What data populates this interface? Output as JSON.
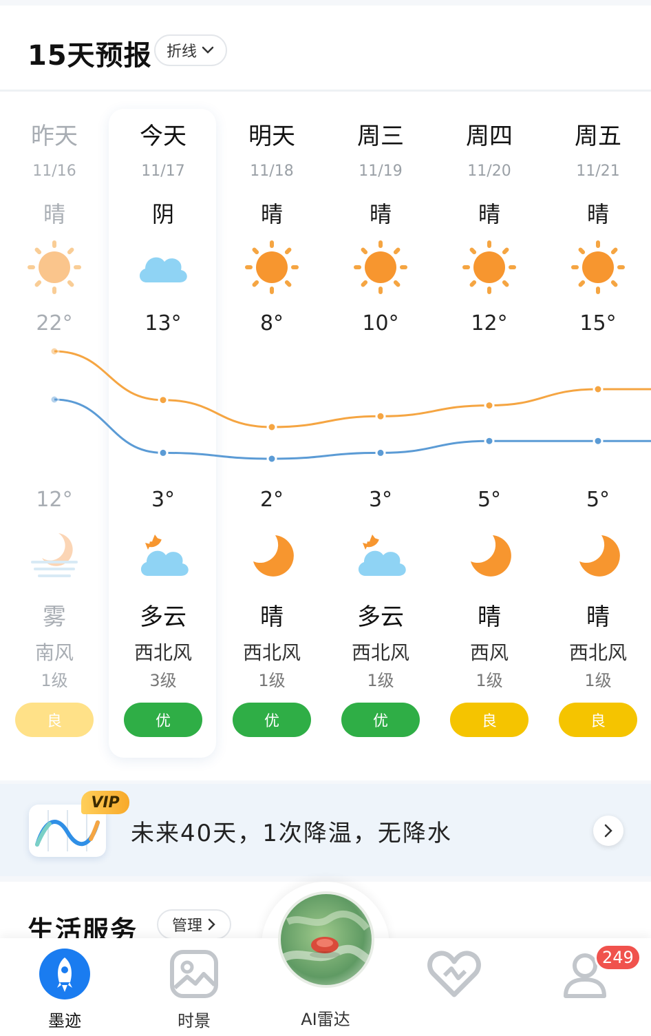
{
  "forecast": {
    "title": "15天预报",
    "mode_label": "折线",
    "colors": {
      "high_line": "#f5a542",
      "low_line": "#5b9bd5",
      "aqi_good": "#2fae46",
      "aqi_fair": "#f5c400"
    },
    "days": [
      {
        "name": "昨天",
        "date": "11/16",
        "day_cond": "晴",
        "day_icon": "sun-icon",
        "high": "22°",
        "low": "12°",
        "night_icon": "fog-moon-icon",
        "night_cond": "雾",
        "wind_dir": "南风",
        "wind_level": "1级",
        "aqi": "良",
        "aqi_color": "#ffe188"
      },
      {
        "name": "今天",
        "date": "11/17",
        "day_cond": "阴",
        "day_icon": "cloud-icon",
        "high": "13°",
        "low": "3°",
        "night_icon": "cloudy-moon-icon",
        "night_cond": "多云",
        "wind_dir": "西北风",
        "wind_level": "3级",
        "aqi": "优",
        "aqi_color": "#2fae46"
      },
      {
        "name": "明天",
        "date": "11/18",
        "day_cond": "晴",
        "day_icon": "sun-icon",
        "high": "8°",
        "low": "2°",
        "night_icon": "moon-icon",
        "night_cond": "晴",
        "wind_dir": "西北风",
        "wind_level": "1级",
        "aqi": "优",
        "aqi_color": "#2fae46"
      },
      {
        "name": "周三",
        "date": "11/19",
        "day_cond": "晴",
        "day_icon": "sun-icon",
        "high": "10°",
        "low": "3°",
        "night_icon": "cloudy-moon-icon",
        "night_cond": "多云",
        "wind_dir": "西北风",
        "wind_level": "1级",
        "aqi": "优",
        "aqi_color": "#2fae46"
      },
      {
        "name": "周四",
        "date": "11/20",
        "day_cond": "晴",
        "day_icon": "sun-icon",
        "high": "12°",
        "low": "5°",
        "night_icon": "moon-icon",
        "night_cond": "晴",
        "wind_dir": "西风",
        "wind_level": "1级",
        "aqi": "良",
        "aqi_color": "#f5c400"
      },
      {
        "name": "周五",
        "date": "11/21",
        "day_cond": "晴",
        "day_icon": "sun-icon",
        "high": "15°",
        "low": "5°",
        "night_icon": "moon-icon",
        "night_cond": "晴",
        "wind_dir": "西北风",
        "wind_level": "1级",
        "aqi": "良",
        "aqi_color": "#f5c400"
      }
    ]
  },
  "banner": {
    "vip_label": "VIP",
    "text": "未来40天，1次降温，无降水"
  },
  "services": {
    "title": "生活服务",
    "manage_label": "管理"
  },
  "bottom_nav": {
    "items": [
      {
        "label": "墨迹",
        "icon": "rocket-icon"
      },
      {
        "label": "时景",
        "icon": "image-icon"
      },
      {
        "label": "AI雷达",
        "icon": "radar-icon"
      },
      {
        "label": "",
        "icon": "heart-icon"
      },
      {
        "label": "",
        "icon": "user-icon"
      }
    ],
    "profile_badge": "249"
  }
}
